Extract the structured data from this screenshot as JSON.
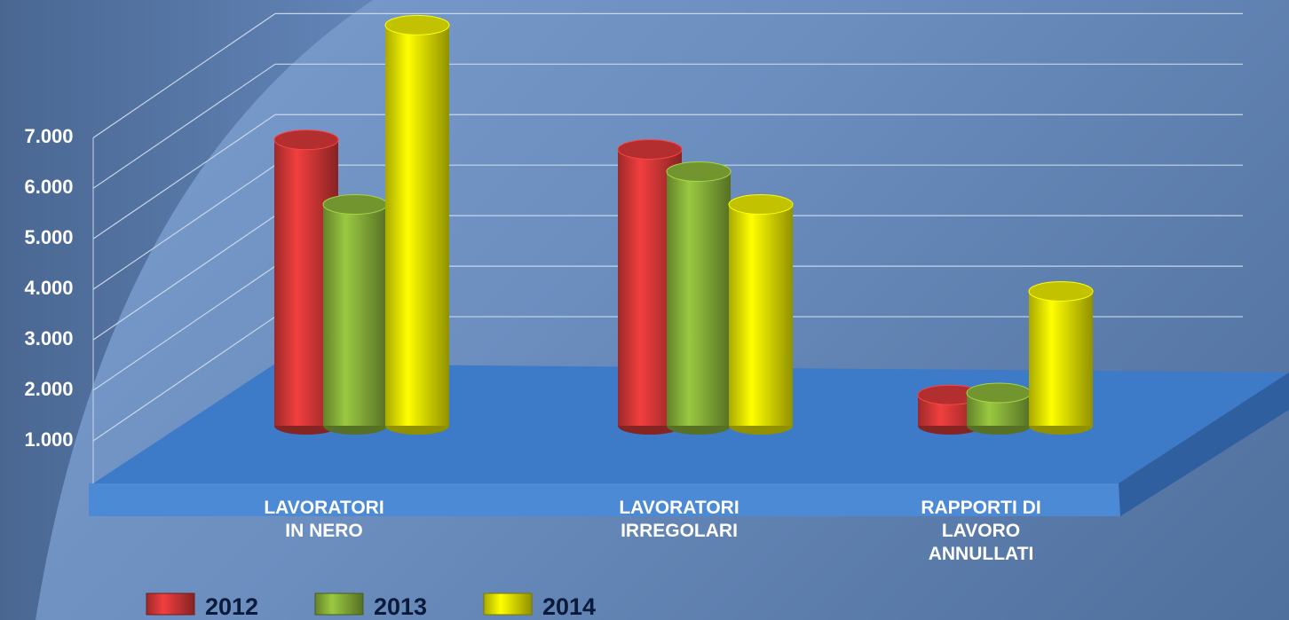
{
  "chart_data": {
    "type": "bar3d",
    "categories": [
      "LAVORATORI\nIN NERO",
      "LAVORATORI\nIRREGOLARI",
      "RAPPORTI DI\nLAVORO\nANNULLATI"
    ],
    "series": [
      {
        "name": "2012",
        "color": "#e03a3a",
        "values": [
          6960,
          6770,
          1910
        ]
      },
      {
        "name": "2013",
        "color": "#8fba3c",
        "values": [
          5680,
          6330,
          1950
        ]
      },
      {
        "name": "2014",
        "color": "#f2f200",
        "values": [
          9230,
          5680,
          3960
        ]
      }
    ],
    "ylim": [
      0,
      9500
    ],
    "yticks": [
      {
        "value": 1000,
        "label": "1.000"
      },
      {
        "value": 2000,
        "label": "2.000"
      },
      {
        "value": 3000,
        "label": "3.000"
      },
      {
        "value": 4000,
        "label": "4.000"
      },
      {
        "value": 5000,
        "label": "5.000"
      },
      {
        "value": 6000,
        "label": "6.000"
      },
      {
        "value": 7000,
        "label": "7.000"
      }
    ],
    "grid": true,
    "legend": "bottom"
  }
}
